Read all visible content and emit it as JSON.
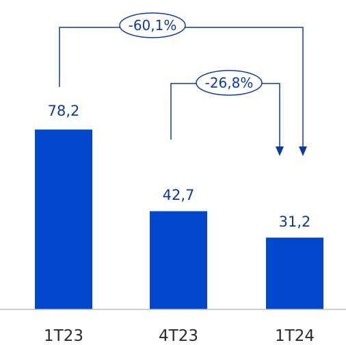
{
  "chart_data": {
    "type": "bar",
    "categories": [
      "1T23",
      "4T23",
      "1T24"
    ],
    "values": [
      78.2,
      42.7,
      31.2
    ],
    "value_labels": [
      "78,2",
      "42,7",
      "31,2"
    ],
    "ylim": [
      0,
      100
    ],
    "grid": false,
    "colors": {
      "bar": "#0047cc",
      "annotation": "#0b3a9e"
    },
    "annotations": [
      {
        "label": "-60,1%",
        "from": "1T23",
        "to": "1T24"
      },
      {
        "label": "-26,8%",
        "from": "4T23",
        "to": "1T24"
      }
    ]
  }
}
